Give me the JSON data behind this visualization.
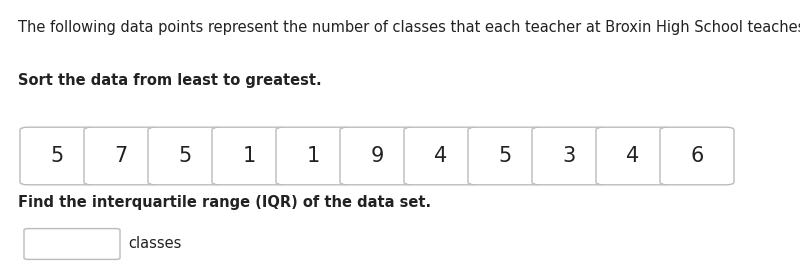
{
  "description_text": "The following data points represent the number of classes that each teacher at Broxin High School teaches.",
  "sort_label": "Sort the data from least to greatest.",
  "data_values": [
    "5",
    "7",
    "5",
    "1",
    "1",
    "9",
    "4",
    "5",
    "3",
    "4",
    "6"
  ],
  "find_label": "Find the interquartile range (IQR) of the data set.",
  "answer_label": "classes",
  "bg_color": "#ffffff",
  "text_color": "#222222",
  "box_edge_color": "#bbbbbb",
  "box_face_color": "#ffffff",
  "desc_fontsize": 10.5,
  "sort_fontsize": 10.5,
  "value_fontsize": 15,
  "find_fontsize": 10.5,
  "answer_fontsize": 10.5
}
